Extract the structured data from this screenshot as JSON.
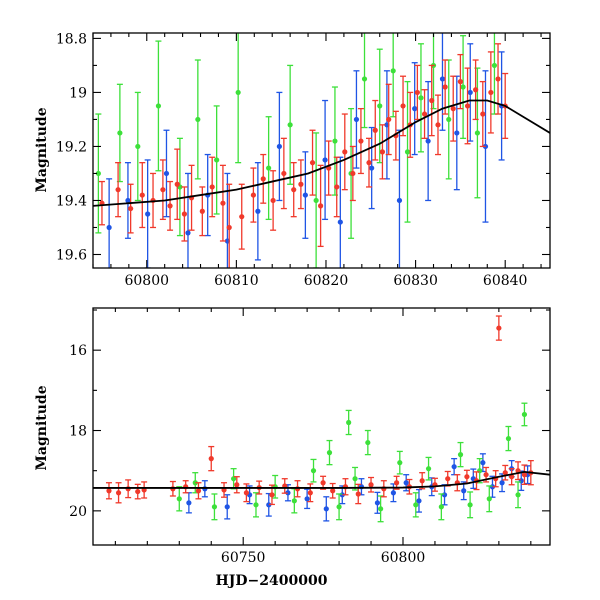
{
  "chart_data": [
    {
      "type": "scatter",
      "title": "",
      "xlabel": "",
      "ylabel": "Magnitude",
      "xlim": [
        60794,
        60845
      ],
      "ylim": [
        19.65,
        18.78
      ],
      "y_inverted": true,
      "xticks": [
        60800,
        60810,
        60820,
        60830,
        60840
      ],
      "xtick_labels": [
        "60800",
        "60810",
        "60820",
        "60830",
        "60840"
      ],
      "yticks": [
        18.8,
        19.0,
        19.2,
        19.4,
        19.6
      ],
      "ytick_labels": [
        "18.8",
        "19",
        "19.2",
        "19.4",
        "19.6"
      ],
      "grid": false,
      "legend": "none",
      "series": [
        {
          "color": "#f0392b",
          "band": "red",
          "x": [
            60795.0,
            60796.8,
            60798.2,
            60799.5,
            60800.7,
            60801.8,
            60802.6,
            60803.4,
            60804.2,
            60805.0,
            60806.2,
            60807.3,
            60808.5,
            60809.2,
            60810.6,
            60811.9,
            60813.0,
            60814.1,
            60815.3,
            60816.4,
            60817.2,
            60818.5,
            60819.4,
            60820.3,
            60821.2,
            60822.1,
            60823.0,
            60823.9,
            60824.8,
            60825.5,
            60826.3,
            60827.0,
            60827.8,
            60828.6,
            60829.4,
            60830.2,
            60831.0,
            60831.8,
            60832.5,
            60833.3,
            60834.2,
            60835.0,
            60835.8,
            60836.7,
            60837.5,
            60838.4,
            60839.2,
            60840.0
          ],
          "y": [
            19.41,
            19.36,
            19.43,
            19.38,
            19.4,
            19.36,
            19.42,
            19.34,
            19.45,
            19.39,
            19.44,
            19.35,
            19.41,
            19.5,
            19.46,
            19.38,
            19.32,
            19.4,
            19.3,
            19.36,
            19.34,
            19.26,
            19.42,
            19.28,
            19.35,
            19.22,
            19.3,
            19.18,
            19.26,
            19.14,
            19.22,
            19.1,
            19.16,
            19.05,
            19.12,
            19.0,
            19.08,
            19.03,
            19.12,
            18.98,
            19.06,
            18.96,
            19.05,
            18.99,
            19.08,
            19.0,
            18.95,
            19.05
          ],
          "err": [
            0.08,
            0.1,
            0.09,
            0.12,
            0.1,
            0.11,
            0.09,
            0.13,
            0.1,
            0.12,
            0.09,
            0.11,
            0.14,
            0.16,
            0.12,
            0.1,
            0.09,
            0.11,
            0.13,
            0.1,
            0.09,
            0.12,
            0.15,
            0.1,
            0.11,
            0.14,
            0.1,
            0.12,
            0.09,
            0.11,
            0.1,
            0.13,
            0.09,
            0.11,
            0.12,
            0.1,
            0.09,
            0.13,
            0.11,
            0.1,
            0.12,
            0.1,
            0.14,
            0.11,
            0.12,
            0.15,
            0.13,
            0.12
          ]
        },
        {
          "color": "#1f55e5",
          "band": "blue",
          "x": [
            60795.8,
            60797.9,
            60800.1,
            60802.2,
            60804.6,
            60806.8,
            60809.0,
            60812.4,
            60814.8,
            60817.7,
            60819.9,
            60821.6,
            60823.4,
            60825.1,
            60826.8,
            60828.2,
            60829.9,
            60831.4,
            60833.0,
            60834.6,
            60836.1,
            60837.8,
            60839.6
          ],
          "y": [
            19.5,
            19.4,
            19.45,
            19.3,
            19.52,
            19.38,
            19.55,
            19.44,
            19.2,
            19.38,
            19.25,
            19.48,
            19.1,
            19.28,
            19.12,
            19.4,
            19.06,
            19.18,
            18.95,
            19.15,
            19.0,
            19.2,
            19.05
          ],
          "err": [
            0.18,
            0.14,
            0.2,
            0.16,
            0.22,
            0.15,
            0.25,
            0.18,
            0.2,
            0.16,
            0.22,
            0.24,
            0.18,
            0.15,
            0.2,
            0.26,
            0.17,
            0.22,
            0.19,
            0.21,
            0.18,
            0.28,
            0.2
          ]
        },
        {
          "color": "#3de03a",
          "band": "green",
          "x": [
            60794.6,
            60797.0,
            60799.0,
            60801.3,
            60803.7,
            60805.7,
            60807.8,
            60810.2,
            60813.6,
            60816.0,
            60818.9,
            60821.0,
            60822.8,
            60824.3,
            60826.0,
            60827.5,
            60829.1,
            60830.6,
            60832.0,
            60833.7,
            60835.3,
            60836.9,
            60838.8
          ],
          "y": [
            19.3,
            19.15,
            19.2,
            19.05,
            19.35,
            19.1,
            19.25,
            19.0,
            19.28,
            19.12,
            19.4,
            19.18,
            19.3,
            18.95,
            19.05,
            18.92,
            19.22,
            19.02,
            18.9,
            19.1,
            18.98,
            19.15,
            18.9
          ],
          "err": [
            0.22,
            0.18,
            0.2,
            0.24,
            0.18,
            0.22,
            0.2,
            0.26,
            0.19,
            0.22,
            0.25,
            0.2,
            0.24,
            0.18,
            0.21,
            0.17,
            0.26,
            0.2,
            0.16,
            0.22,
            0.19,
            0.24,
            0.18
          ]
        }
      ],
      "model_curve": {
        "color": "#000000",
        "x": [
          60794,
          60798,
          60802,
          60806,
          60810,
          60814,
          60818,
          60822,
          60826,
          60830,
          60833,
          60836,
          60838,
          60840,
          60842,
          60845
        ],
        "y": [
          19.42,
          19.41,
          19.4,
          19.38,
          19.36,
          19.33,
          19.3,
          19.25,
          19.19,
          19.11,
          19.06,
          19.03,
          19.03,
          19.05,
          19.09,
          19.15
        ]
      }
    },
    {
      "type": "scatter",
      "title": "",
      "xlabel": "HJD−2400000",
      "ylabel": "Magnitude",
      "xlim": [
        60703,
        60846
      ],
      "ylim": [
        20.85,
        14.95
      ],
      "y_inverted": true,
      "xticks": [
        60750,
        60800
      ],
      "xtick_labels": [
        "60750",
        "60800"
      ],
      "yticks": [
        16,
        18,
        20
      ],
      "ytick_labels": [
        "16",
        "18",
        "20"
      ],
      "grid": false,
      "legend": "none",
      "series": [
        {
          "color": "#f0392b",
          "band": "red",
          "x": [
            60708,
            60711,
            60714,
            60717,
            60719,
            60728,
            60732,
            60736,
            60740,
            60744,
            60748,
            60751,
            60755,
            60759,
            60763,
            60767,
            60771,
            60775,
            60778,
            60782,
            60786,
            60790,
            60794,
            60798,
            60802,
            60806,
            60810,
            60814,
            60817,
            60820,
            60823,
            60826,
            60829,
            60830,
            60832,
            60834,
            60836,
            60838,
            60840
          ],
          "y": [
            19.5,
            19.55,
            19.45,
            19.52,
            19.48,
            19.45,
            19.4,
            19.5,
            18.7,
            19.48,
            19.35,
            19.55,
            19.42,
            19.6,
            19.38,
            19.45,
            19.55,
            19.3,
            19.5,
            19.4,
            19.58,
            19.35,
            19.45,
            19.3,
            19.4,
            19.25,
            19.35,
            19.2,
            19.3,
            19.15,
            19.25,
            19.1,
            19.2,
            15.45,
            19.05,
            19.15,
            19.0,
            19.1,
            19.05
          ],
          "err": [
            0.2,
            0.25,
            0.22,
            0.18,
            0.2,
            0.18,
            0.15,
            0.2,
            0.3,
            0.18,
            0.2,
            0.22,
            0.16,
            0.24,
            0.18,
            0.2,
            0.22,
            0.16,
            0.18,
            0.2,
            0.24,
            0.18,
            0.2,
            0.16,
            0.18,
            0.2,
            0.16,
            0.18,
            0.2,
            0.16,
            0.22,
            0.18,
            0.2,
            0.3,
            0.18,
            0.2,
            0.22,
            0.24,
            0.3
          ]
        },
        {
          "color": "#1f55e5",
          "band": "blue",
          "x": [
            60733,
            60738,
            60745,
            60752,
            60758,
            60764,
            60770,
            60776,
            60781,
            60787,
            60792,
            60797,
            60801,
            60805,
            60809,
            60813,
            60816,
            60819,
            60822,
            60825,
            60828,
            60831,
            60834,
            60837,
            60839
          ],
          "y": [
            19.8,
            19.45,
            19.9,
            19.6,
            19.85,
            19.55,
            19.7,
            19.95,
            19.6,
            19.4,
            19.8,
            19.55,
            19.3,
            19.75,
            19.4,
            19.6,
            18.9,
            19.5,
            19.2,
            18.8,
            19.4,
            19.3,
            18.95,
            19.25,
            19.1
          ],
          "err": [
            0.25,
            0.2,
            0.3,
            0.22,
            0.28,
            0.2,
            0.24,
            0.3,
            0.22,
            0.2,
            0.26,
            0.22,
            0.2,
            0.28,
            0.22,
            0.25,
            0.2,
            0.22,
            0.24,
            0.22,
            0.26,
            0.22,
            0.2,
            0.24,
            0.22
          ]
        },
        {
          "color": "#3de03a",
          "band": "green",
          "x": [
            60730,
            60735,
            60741,
            60747,
            60754,
            60760,
            60766,
            60772,
            60777,
            60780,
            60783,
            60785,
            60789,
            60793,
            60799,
            60804,
            60808,
            60812,
            60818,
            60821,
            60824,
            60827,
            60833,
            60836,
            60838
          ],
          "y": [
            19.7,
            19.3,
            19.9,
            19.2,
            19.85,
            19.4,
            19.75,
            19.0,
            18.55,
            19.9,
            17.8,
            19.2,
            18.3,
            19.95,
            18.8,
            19.85,
            18.95,
            19.9,
            18.6,
            19.85,
            19.0,
            19.7,
            18.2,
            19.6,
            17.6
          ],
          "err": [
            0.3,
            0.25,
            0.32,
            0.25,
            0.3,
            0.28,
            0.3,
            0.28,
            0.3,
            0.32,
            0.3,
            0.28,
            0.3,
            0.32,
            0.28,
            0.3,
            0.28,
            0.32,
            0.3,
            0.32,
            0.3,
            0.32,
            0.3,
            0.32,
            0.28
          ]
        }
      ],
      "model_curve": {
        "color": "#000000",
        "x": [
          60703,
          60720,
          60740,
          60760,
          60780,
          60800,
          60810,
          60820,
          60830,
          60838,
          60846
        ],
        "y": [
          19.43,
          19.43,
          19.43,
          19.43,
          19.43,
          19.42,
          19.39,
          19.32,
          19.15,
          19.03,
          19.1
        ]
      }
    }
  ]
}
